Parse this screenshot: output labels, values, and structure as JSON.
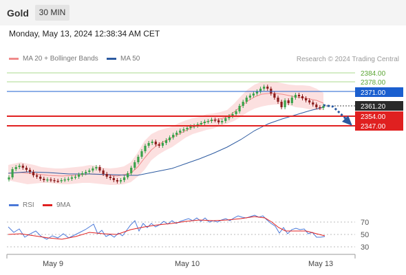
{
  "header": {
    "symbol": "Gold",
    "timeframe": "30 MIN"
  },
  "datetime": "Monday, May 13, 2024 12:38:34 AM CET",
  "legend": {
    "ma20": "MA 20 + Bollinger Bands",
    "ma50": "MA 50",
    "credit": "Research © 2024 Trading Central",
    "ma20_color": "#f08a8a",
    "ma50_color": "#2c5aa0"
  },
  "levels": [
    {
      "value": "2384.00",
      "kind": "resistance"
    },
    {
      "value": "2378.00",
      "kind": "resistance"
    },
    {
      "value": "2371.00",
      "kind": "pivot"
    },
    {
      "value": "2361.20",
      "kind": "last"
    },
    {
      "value": "2354.00",
      "kind": "support"
    },
    {
      "value": "2347.00",
      "kind": "support"
    }
  ],
  "colors": {
    "resistance": "#6cbf45",
    "pivot": "#1b5fcf",
    "last": "#2a2a2a",
    "support": "#e02020",
    "arrow": "#2c5aa0",
    "rsi": "#4a78d8",
    "rsi_ma": "#e02020"
  },
  "rsi_legend": {
    "rsi": "RSI",
    "ma": "9MA"
  },
  "rsi_levels": [
    "70",
    "50",
    "30"
  ],
  "x_labels": [
    "May 9",
    "May 10",
    "May 13"
  ]
}
